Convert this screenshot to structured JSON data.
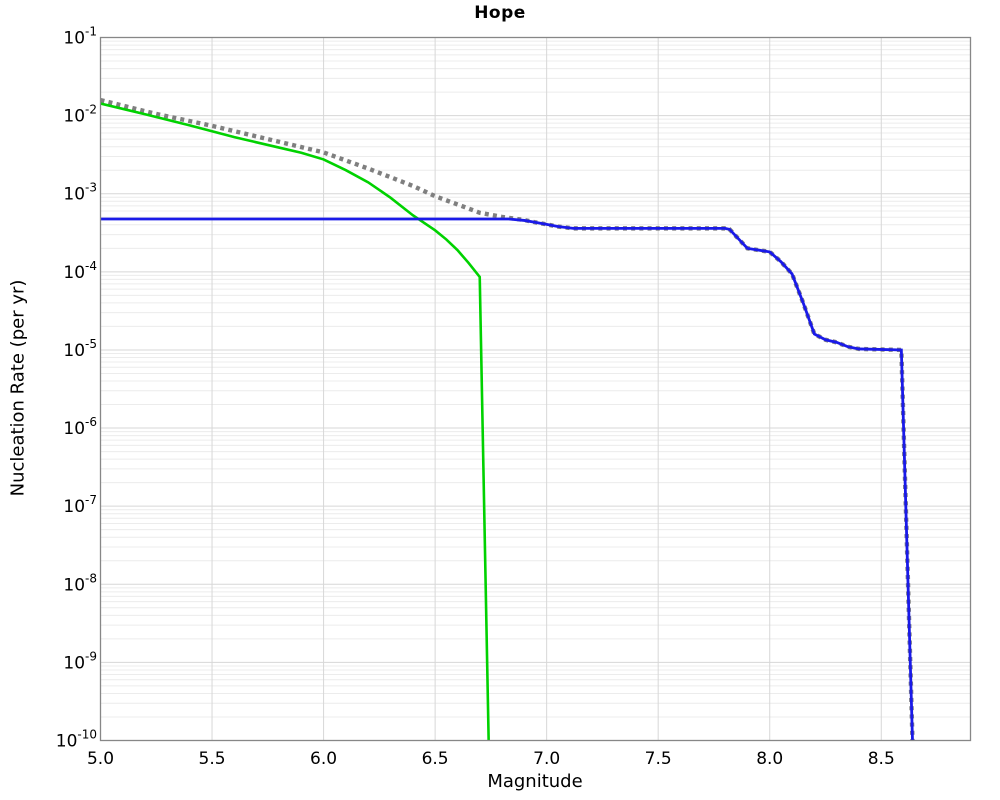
{
  "chart_data": {
    "type": "line",
    "title": "Hope",
    "xlabel": "Magnitude",
    "ylabel": "Nucleation Rate (per yr)",
    "xlim": [
      5.0,
      8.9
    ],
    "ylim_exp": [
      -10,
      -1
    ],
    "yscale": "log",
    "grid": {
      "major": true,
      "minor": true,
      "legend": "none"
    },
    "x_ticks": [
      5.0,
      5.5,
      6.0,
      6.5,
      7.0,
      7.5,
      8.0,
      8.5
    ],
    "x_tick_labels": [
      "5.0",
      "5.5",
      "6.0",
      "6.5",
      "7.0",
      "7.5",
      "8.0",
      "8.5"
    ],
    "y_tick_base": "10",
    "y_tick_exponents": [
      "-1",
      "-2",
      "-3",
      "-4",
      "-5",
      "-6",
      "-7",
      "-8",
      "-9",
      "-10"
    ],
    "style": {
      "major_grid_color": "#d7d7d7",
      "minor_grid_color": "#ececec",
      "border_color": "#878787",
      "background": "#ffffff"
    },
    "series": [
      {
        "name": "total-rate-dotted",
        "color": "#7f7f7f",
        "style": "dotted",
        "width": 4.4,
        "points": [
          [
            5.0,
            0.0158
          ],
          [
            5.25,
            0.0105
          ],
          [
            5.5,
            0.0074
          ],
          [
            5.75,
            0.005
          ],
          [
            6.0,
            0.00338
          ],
          [
            6.2,
            0.0021
          ],
          [
            6.4,
            0.00126
          ],
          [
            6.5,
            0.00093
          ],
          [
            6.6,
            0.00073
          ],
          [
            6.7,
            0.00057
          ],
          [
            6.8,
            0.000505
          ],
          [
            6.9,
            0.00046
          ],
          [
            6.95,
            0.00043
          ],
          [
            7.0,
            0.000405
          ],
          [
            7.05,
            0.00038
          ],
          [
            7.12,
            0.00036
          ],
          [
            7.8,
            0.00036
          ],
          [
            7.82,
            0.00035
          ],
          [
            7.9,
            0.0002
          ],
          [
            8.0,
            0.00018
          ],
          [
            8.05,
            0.000135
          ],
          [
            8.1,
            9.4e-05
          ],
          [
            8.15,
            4e-05
          ],
          [
            8.2,
            1.6e-05
          ],
          [
            8.25,
            1.35e-05
          ],
          [
            8.3,
            1.25e-05
          ],
          [
            8.35,
            1.1e-05
          ],
          [
            8.4,
            1.03e-05
          ],
          [
            8.59,
            1e-05
          ],
          [
            8.64,
            1e-10
          ]
        ]
      },
      {
        "name": "tapered-rate-green",
        "color": "#00d200",
        "style": "solid",
        "width": 2.6,
        "points": [
          [
            5.0,
            0.0143
          ],
          [
            5.2,
            0.0104
          ],
          [
            5.4,
            0.0075
          ],
          [
            5.6,
            0.0053
          ],
          [
            5.8,
            0.0039
          ],
          [
            5.9,
            0.00335
          ],
          [
            6.0,
            0.00275
          ],
          [
            6.1,
            0.002
          ],
          [
            6.2,
            0.0014
          ],
          [
            6.3,
            0.00089
          ],
          [
            6.4,
            0.00053
          ],
          [
            6.5,
            0.00034
          ],
          [
            6.55,
            0.00026
          ],
          [
            6.6,
            0.00019
          ],
          [
            6.65,
            0.00013
          ],
          [
            6.7,
            8.6e-05
          ],
          [
            6.74,
            1e-10
          ]
        ]
      },
      {
        "name": "clamped-rate-blue",
        "color": "#1a1ae8",
        "style": "solid",
        "width": 2.8,
        "points": [
          [
            5.0,
            0.000475
          ],
          [
            6.83,
            0.000475
          ],
          [
            6.9,
            0.000455
          ],
          [
            6.95,
            0.00043
          ],
          [
            7.0,
            0.000405
          ],
          [
            7.05,
            0.00038
          ],
          [
            7.12,
            0.00036
          ],
          [
            7.8,
            0.00036
          ],
          [
            7.82,
            0.00035
          ],
          [
            7.9,
            0.0002
          ],
          [
            8.0,
            0.00018
          ],
          [
            8.05,
            0.000135
          ],
          [
            8.1,
            9.4e-05
          ],
          [
            8.15,
            4e-05
          ],
          [
            8.2,
            1.6e-05
          ],
          [
            8.25,
            1.35e-05
          ],
          [
            8.3,
            1.25e-05
          ],
          [
            8.35,
            1.1e-05
          ],
          [
            8.4,
            1.03e-05
          ],
          [
            8.59,
            1e-05
          ],
          [
            8.64,
            1e-10
          ]
        ]
      }
    ]
  }
}
